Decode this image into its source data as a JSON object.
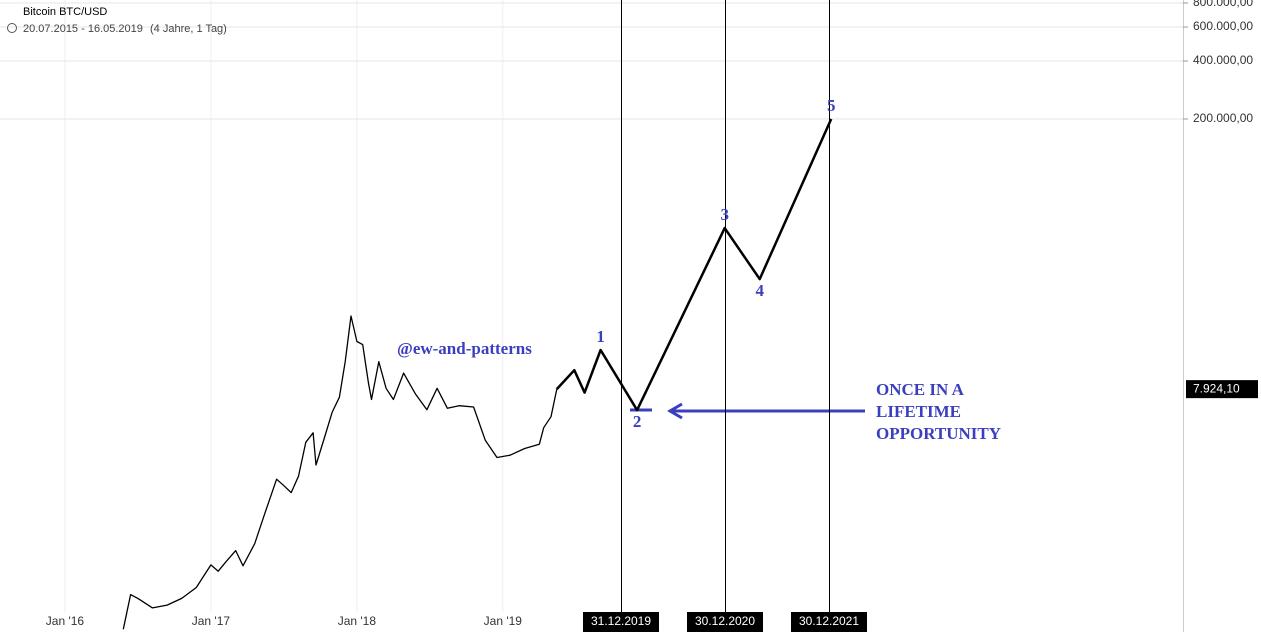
{
  "chart_data": {
    "type": "line",
    "title": "Bitcoin BTC/USD",
    "date_range": "20.07.2015 - 16.05.2019",
    "duration": "(4 Jahre, 1 Tag)",
    "log_scale": true,
    "grid": true,
    "xlim": [
      2015.555,
      2023.66
    ],
    "xticks": [
      {
        "value": 2016,
        "label": "Jan '16"
      },
      {
        "value": 2017,
        "label": "Jan '17"
      },
      {
        "value": 2018,
        "label": "Jan '18"
      },
      {
        "value": 2019,
        "label": "Jan '19"
      }
    ],
    "ylim": [
      435,
      829000
    ],
    "yticks": [
      {
        "value": 800000,
        "label": "800.000,00"
      },
      {
        "value": 600000,
        "label": "600.000,00"
      },
      {
        "value": 400000,
        "label": "400.000,00"
      },
      {
        "value": 200000,
        "label": "200.000,00"
      }
    ],
    "series": [
      {
        "color": "#000000",
        "x": [
          2016.4,
          2016.45,
          2016.5,
          2016.6,
          2016.7,
          2016.8,
          2016.9,
          2017.0,
          2017.05,
          2017.1,
          2017.17,
          2017.22,
          2017.3,
          2017.37,
          2017.45,
          2017.5,
          2017.55,
          2017.6,
          2017.65,
          2017.7,
          2017.72,
          2017.78,
          2017.83,
          2017.88,
          2017.92,
          2017.96,
          2018.0,
          2018.04,
          2018.08,
          2018.1,
          2018.15,
          2018.2,
          2018.25,
          2018.32,
          2018.4,
          2018.48,
          2018.55,
          2018.62,
          2018.7,
          2018.8,
          2018.88,
          2018.96,
          2019.05,
          2019.15,
          2019.25,
          2019.28,
          2019.33,
          2019.37
        ],
        "values": [
          450,
          680,
          650,
          580,
          600,
          650,
          740,
          970,
          900,
          1000,
          1150,
          960,
          1250,
          1800,
          2700,
          2500,
          2300,
          2800,
          4200,
          4700,
          3200,
          4500,
          6000,
          7200,
          11000,
          19000,
          14000,
          13500,
          8500,
          7000,
          11000,
          8000,
          7000,
          9600,
          7500,
          6200,
          8000,
          6300,
          6500,
          6400,
          4300,
          3500,
          3600,
          3900,
          4100,
          5000,
          5700,
          7924
        ]
      },
      {
        "color": "#000000",
        "x": [
          2019.37,
          2019.49,
          2019.56,
          2019.67,
          2019.92,
          2020.52,
          2020.76,
          2021.25
        ],
        "values": [
          7924,
          9940,
          7600,
          12650,
          6170,
          54300,
          29500,
          200000
        ]
      }
    ],
    "wave_labels": [
      "1",
      "2",
      "3",
      "4",
      "5"
    ],
    "last_price": {
      "value": 7924.1,
      "label": "7.924,10"
    },
    "event_labels": [
      "31.12.2019",
      "30.12.2020",
      "30.12.2021"
    ],
    "watermark": "@ew-and-patterns",
    "callout": [
      "ONCE IN A",
      "LIFETIME",
      "OPPORTUNITY"
    ]
  }
}
